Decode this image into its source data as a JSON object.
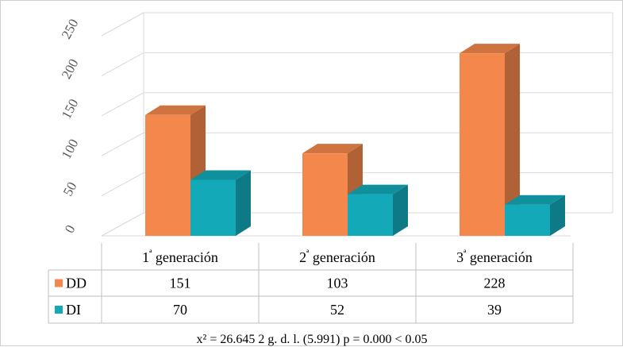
{
  "chart_data": {
    "type": "bar",
    "categories": [
      "1ª generación",
      "2ª generación",
      "3ª generación"
    ],
    "series": [
      {
        "name": "DD",
        "values": [
          151,
          103,
          228
        ],
        "color": "#f4874b"
      },
      {
        "name": "DI",
        "values": [
          70,
          52,
          39
        ],
        "color": "#13a9b9"
      }
    ],
    "y_ticks": [
      "0",
      "50",
      "100",
      "150",
      "200",
      "250"
    ],
    "ylim": [
      0,
      250
    ],
    "grid": true,
    "legend": "data-table",
    "style": "3d-column",
    "footnote": "x² = 26.645   2 g. d. l. (5.991)   p = 0.000 < 0.05"
  }
}
